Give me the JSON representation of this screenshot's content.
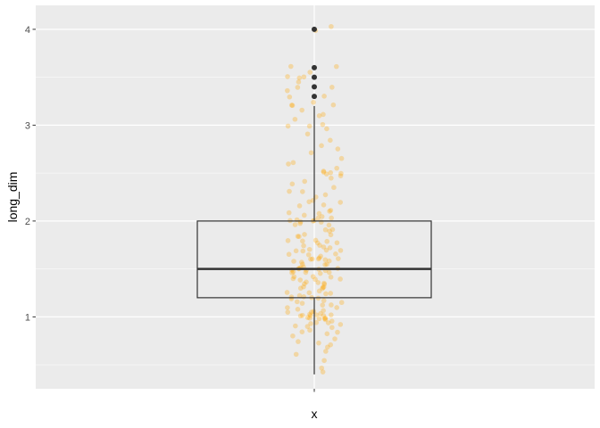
{
  "chart_data": {
    "type": "boxplot",
    "xlabel": "x",
    "ylabel": "long_dim",
    "categories": [
      "x"
    ],
    "ylim": [
      0.25,
      4.25
    ],
    "y_ticks": [
      1,
      2,
      3,
      4
    ],
    "y_tick_labels": [
      "1",
      "2",
      "3",
      "4"
    ],
    "grid": true,
    "legend": "none",
    "box": {
      "category": "x",
      "whisker_low": 0.4,
      "q1": 1.2,
      "median": 1.5,
      "q3": 2.0,
      "whisker_high": 3.2,
      "outliers": [
        3.3,
        3.4,
        3.5,
        3.6,
        4.0
      ]
    },
    "jitter_points": {
      "color": "#FFA500",
      "opacity": 0.3,
      "values": [
        0.42,
        0.48,
        0.55,
        0.62,
        0.65,
        0.68,
        0.7,
        0.72,
        0.75,
        0.78,
        0.8,
        0.82,
        0.84,
        0.85,
        0.86,
        0.88,
        0.9,
        0.9,
        0.92,
        0.93,
        0.94,
        0.95,
        0.95,
        0.96,
        0.97,
        0.98,
        0.98,
        0.99,
        1.0,
        1.0,
        1.0,
        1.0,
        1.01,
        1.02,
        1.02,
        1.03,
        1.04,
        1.05,
        1.05,
        1.06,
        1.07,
        1.08,
        1.1,
        1.1,
        1.12,
        1.13,
        1.15,
        1.15,
        1.16,
        1.18,
        1.2,
        1.2,
        1.2,
        1.21,
        1.22,
        1.23,
        1.25,
        1.25,
        1.25,
        1.26,
        1.28,
        1.3,
        1.3,
        1.3,
        1.31,
        1.32,
        1.33,
        1.35,
        1.35,
        1.35,
        1.36,
        1.38,
        1.4,
        1.4,
        1.4,
        1.41,
        1.42,
        1.43,
        1.45,
        1.45,
        1.45,
        1.46,
        1.47,
        1.48,
        1.5,
        1.5,
        1.5,
        1.5,
        1.5,
        1.51,
        1.52,
        1.53,
        1.55,
        1.55,
        1.55,
        1.56,
        1.57,
        1.58,
        1.6,
        1.6,
        1.6,
        1.6,
        1.61,
        1.62,
        1.63,
        1.65,
        1.65,
        1.66,
        1.68,
        1.7,
        1.7,
        1.7,
        1.71,
        1.72,
        1.74,
        1.75,
        1.75,
        1.76,
        1.78,
        1.8,
        1.8,
        1.8,
        1.81,
        1.83,
        1.85,
        1.85,
        1.87,
        1.9,
        1.9,
        1.92,
        1.95,
        1.95,
        1.97,
        2.0,
        2.0,
        2.0,
        2.0,
        2.0,
        2.01,
        2.02,
        2.03,
        2.05,
        2.05,
        2.08,
        2.1,
        2.1,
        2.12,
        2.15,
        2.18,
        2.2,
        2.2,
        2.22,
        2.25,
        2.28,
        2.3,
        2.3,
        2.35,
        2.4,
        2.4,
        2.45,
        2.48,
        2.5,
        2.5,
        2.5,
        2.5,
        2.52,
        2.55,
        2.6,
        2.6,
        2.65,
        2.7,
        2.75,
        2.8,
        2.85,
        2.9,
        2.95,
        3.0,
        3.0,
        3.0,
        3.05,
        3.1,
        3.1,
        3.15,
        3.2,
        3.2,
        3.2,
        3.25,
        3.3,
        3.3,
        3.35,
        3.4,
        3.4,
        3.45,
        3.5,
        3.5,
        3.5,
        3.55,
        3.6,
        3.6,
        4.0,
        4.02
      ]
    }
  }
}
